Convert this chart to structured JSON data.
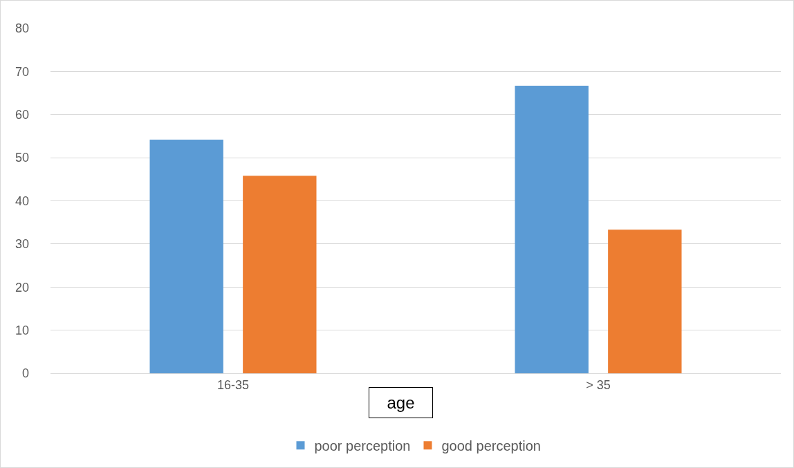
{
  "chart_data": {
    "type": "bar",
    "xlabel": "age",
    "categories": [
      "16-35",
      "> 35"
    ],
    "series": [
      {
        "name": "poor perception",
        "color": "#5b9bd5",
        "values": [
          54.2,
          66.7
        ]
      },
      {
        "name": "good perception",
        "color": "#ed7d31",
        "values": [
          45.8,
          33.3
        ]
      }
    ],
    "ylim": [
      0,
      80
    ],
    "yticks": [
      0,
      10,
      20,
      30,
      40,
      50,
      60,
      70,
      80
    ],
    "grid": "y",
    "legend": "bottom"
  }
}
